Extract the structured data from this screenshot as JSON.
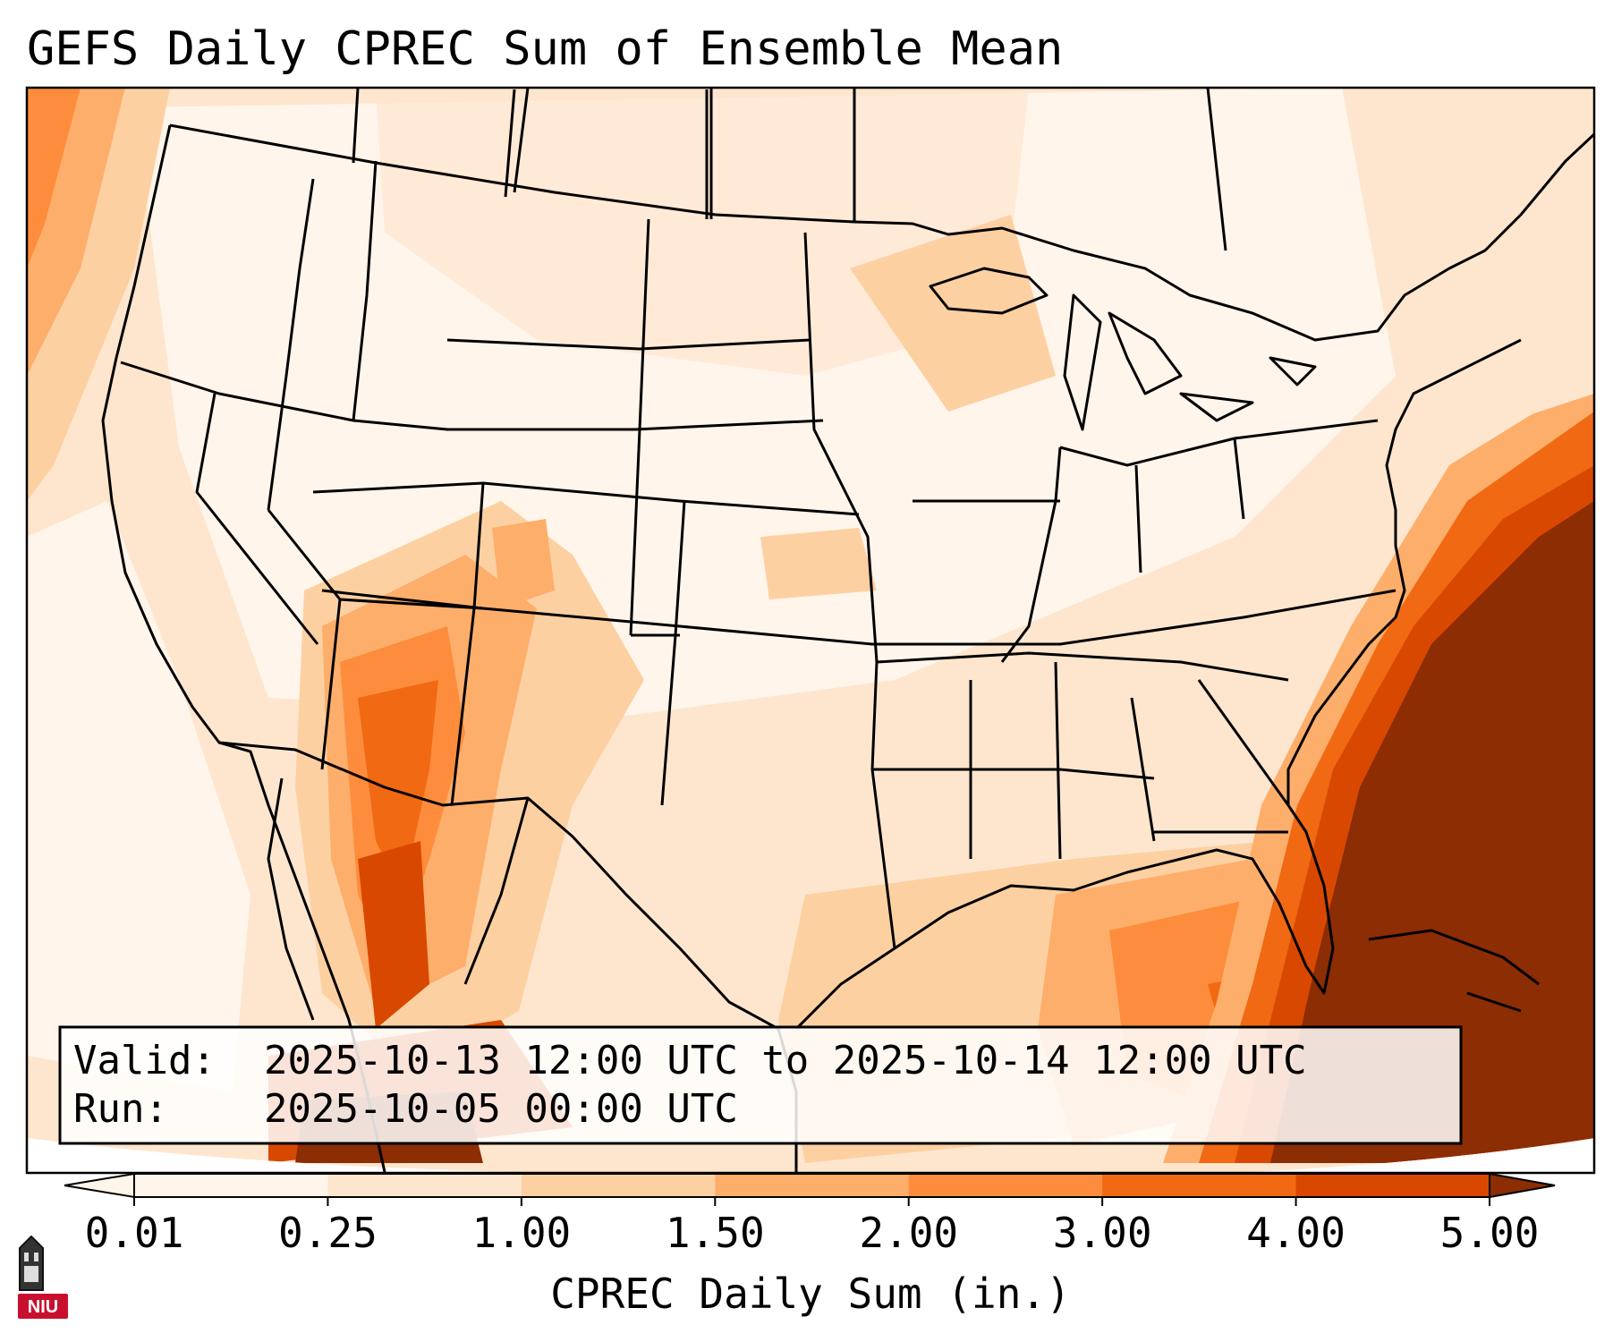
{
  "title": "GEFS Daily CPREC Sum of Ensemble Mean",
  "info_box": {
    "valid_label": "Valid:",
    "valid_value": "2025-10-13 12:00 UTC to 2025-10-14 12:00 UTC",
    "run_label": "Run:",
    "run_value": "2025-10-05 00:00 UTC"
  },
  "colorbar": {
    "label": "CPREC Daily Sum (in.)",
    "ticks": [
      "0.01",
      "0.25",
      "1.00",
      "1.50",
      "2.00",
      "3.00",
      "4.00",
      "5.00"
    ],
    "colors": [
      "#fff5eb",
      "#fee6ce",
      "#fdd0a2",
      "#fdae6b",
      "#fd8d3c",
      "#f16913",
      "#d94801",
      "#8c2d04"
    ],
    "extend": "both"
  },
  "logo": {
    "text": "NIU",
    "icon": "university-tower-icon",
    "color": "#c8102e"
  },
  "map": {
    "projection": "lambert-conformal-conus",
    "features": [
      "state-borders",
      "coastlines",
      "country-borders"
    ],
    "heavy_precip_regions": [
      "Atlantic east of Southeast US",
      "Gulf of Mexico",
      "Arizona / New Mexico",
      "Sierra Madre Occidental",
      "Pacific Northwest offshore"
    ]
  }
}
